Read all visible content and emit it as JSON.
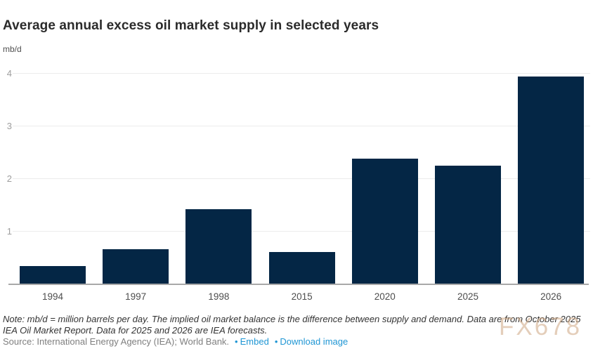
{
  "header": {
    "title": "Average annual excess oil market supply in selected years",
    "units": "mb/d"
  },
  "chart_data": {
    "type": "bar",
    "title": "Average annual excess oil market supply in selected years",
    "ylabel": "mb/d",
    "xlabel": "",
    "categories": [
      "1994",
      "1997",
      "1998",
      "2015",
      "2020",
      "2025",
      "2026"
    ],
    "values": [
      0.35,
      0.67,
      1.43,
      0.61,
      2.39,
      2.26,
      3.95
    ],
    "yticks": [
      1,
      2,
      3,
      4
    ],
    "ylim": [
      0,
      4.2
    ],
    "grid": true,
    "legend": "none",
    "bar_color": "#042645",
    "gridline_color": "#ececec",
    "axis_line_color": "#a8a8a8",
    "tick_label_color": "#9e9e9e"
  },
  "footer": {
    "note": "Note: mb/d = million barrels per day. The implied oil market balance is the difference between supply and demand. Data are from October 2025 IEA Oil Market Report. Data for 2025 and 2026 are IEA forecasts.",
    "source": "Source: International Energy Agency (IEA); World Bank.",
    "bullet": "•",
    "embed_link": "Embed",
    "download_link": "Download image",
    "link_color": "#1f96d4"
  },
  "watermark": "FX678"
}
